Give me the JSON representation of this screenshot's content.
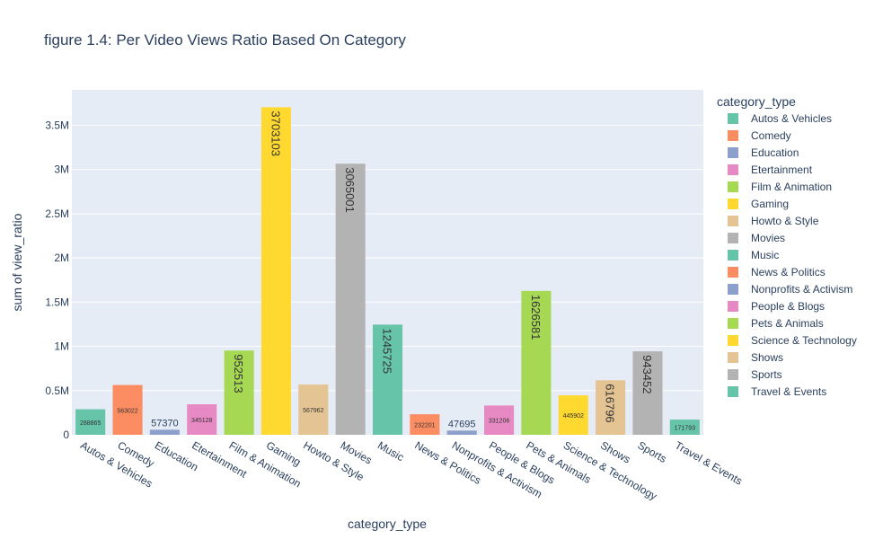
{
  "chart_data": {
    "type": "bar",
    "title": "figure 1.4: Per Video Views Ratio Based On Category",
    "xlabel": "category_type",
    "ylabel": "sum of view_ratio",
    "legend_title": "category_type",
    "legend_position": "right",
    "grid": true,
    "background_color": "#e5ecf6",
    "ylim": [
      0,
      3900000
    ],
    "y_ticks": [
      {
        "value": 0,
        "label": "0"
      },
      {
        "value": 500000,
        "label": "0.5M"
      },
      {
        "value": 1000000,
        "label": "1M"
      },
      {
        "value": 1500000,
        "label": "1.5M"
      },
      {
        "value": 2000000,
        "label": "2M"
      },
      {
        "value": 2500000,
        "label": "2.5M"
      },
      {
        "value": 3000000,
        "label": "3M"
      },
      {
        "value": 3500000,
        "label": "3.5M"
      }
    ],
    "categories": [
      "Autos & Vehicles",
      "Comedy",
      "Education",
      "Etertainment",
      "Film & Animation",
      "Gaming",
      "Howto & Style",
      "Movies",
      "Music",
      "News & Politics",
      "Nonprofits & Activism",
      "People & Blogs",
      "Pets & Animals",
      "Science & Technology",
      "Shows",
      "Sports",
      "Travel & Events"
    ],
    "values": [
      288865,
      563022,
      57370,
      345128,
      952513,
      3703103,
      567962,
      3065001,
      1245725,
      232201,
      47695,
      331206,
      1626581,
      445902,
      616796,
      943452,
      171793
    ],
    "value_labels": [
      "288865",
      "563022",
      "57370",
      "345128",
      "952513",
      "3703103",
      "567962",
      "3065001",
      "1245725",
      "232201",
      "47695",
      "331206",
      "1626581",
      "445902",
      "616796",
      "943452",
      "171793"
    ],
    "colors": [
      "#66c5a9",
      "#fc8d62",
      "#8da0cb",
      "#e78ac3",
      "#a6d854",
      "#ffd92f",
      "#e5c494",
      "#b3b3b3",
      "#66c5a9",
      "#fc8d62",
      "#8da0cb",
      "#e78ac3",
      "#a6d854",
      "#ffd92f",
      "#e5c494",
      "#b3b3b3",
      "#66c5a9"
    ]
  }
}
